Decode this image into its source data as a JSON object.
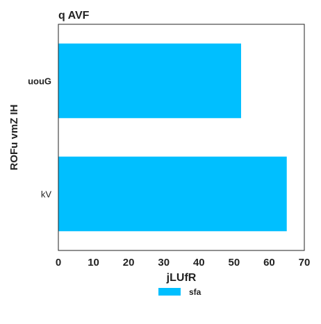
{
  "chart_data": {
    "type": "bar",
    "orientation": "horizontal",
    "title": "q AVF",
    "xlabel": "jLUfR",
    "ylabel": "ROFu  vmZ IH",
    "categories": [
      "uouG",
      "kV"
    ],
    "series": [
      {
        "name": "sfa",
        "values": [
          52,
          65
        ],
        "color": "#00bfff"
      }
    ],
    "xlim": [
      0,
      70
    ],
    "xticks": [
      0,
      10,
      20,
      30,
      40,
      50,
      60,
      70
    ],
    "grid": false,
    "legend_position": "bottom-center"
  }
}
